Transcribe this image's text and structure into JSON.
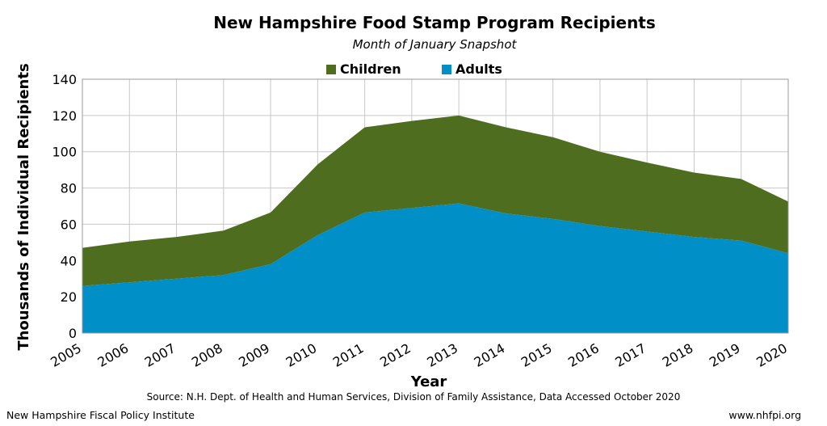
{
  "chart_data": {
    "type": "area",
    "title": "New Hampshire Food Stamp Program Recipients",
    "subtitle": "Month of January Snapshot",
    "xlabel": "Year",
    "ylabel": "Thousands of Individual Recipients",
    "ylim": [
      0,
      140
    ],
    "yticks": [
      0,
      20,
      40,
      60,
      80,
      100,
      120,
      140
    ],
    "stacked": true,
    "grid": true,
    "legend_position": "top",
    "categories": [
      "2005",
      "2006",
      "2007",
      "2008",
      "2009",
      "2010",
      "2011",
      "2012",
      "2013",
      "2014",
      "2015",
      "2016",
      "2017",
      "2018",
      "2019",
      "2020"
    ],
    "series": [
      {
        "name": "Adults",
        "color": "#008fc6",
        "values": [
          26,
          28,
          30,
          32,
          38,
          54,
          66.5,
          69,
          71.5,
          66,
          63,
          59,
          56,
          53,
          51,
          44
        ]
      },
      {
        "name": "Children",
        "color": "#4e6d1f",
        "values": [
          21,
          22.5,
          23,
          24.5,
          28.5,
          39,
          47,
          48,
          48.5,
          47.5,
          45,
          41,
          38,
          35.5,
          34,
          28.5
        ]
      }
    ],
    "source": "Source: N.H. Dept. of Health and Human Services, Division of Family Assistance, Data Accessed October 2020"
  },
  "footer": {
    "left": "New Hampshire Fiscal Policy Institute",
    "right": "www.nhfpi.org"
  }
}
